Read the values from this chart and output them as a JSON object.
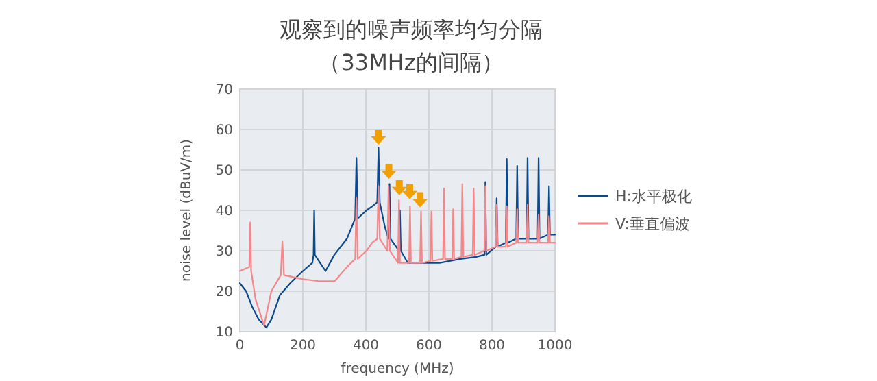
{
  "chart_data": {
    "type": "line",
    "title": "观察到的噪声频率均匀分隔",
    "subtitle": "（33MHz的间隔）",
    "xlabel": "frequency (MHz)",
    "ylabel": "noise level (dBuV/m)",
    "xlim": [
      0,
      1000
    ],
    "ylim": [
      10,
      70
    ],
    "xticks": [
      0,
      200,
      400,
      600,
      800,
      1000
    ],
    "yticks": [
      10,
      20,
      30,
      40,
      50,
      60,
      70
    ],
    "grid": true,
    "legend": "right",
    "line_style": "solid",
    "marker": "none",
    "series": [
      {
        "name": "H:水平极化",
        "color": "#0a4a8c",
        "x": [
          0,
          20,
          40,
          60,
          84,
          100,
          127,
          160,
          200,
          230,
          234,
          236,
          238,
          272,
          300,
          340,
          366,
          370,
          374,
          402,
          420,
          436,
          440,
          444,
          460,
          472,
          475,
          478,
          505,
          508,
          511,
          533,
          545,
          600,
          634,
          700,
          750,
          776,
          779,
          782,
          812,
          815,
          818,
          844,
          847,
          850,
          877,
          880,
          883,
          910,
          913,
          916,
          945,
          948,
          951,
          978,
          981,
          984,
          1000
        ],
        "values": [
          22,
          20,
          16,
          13,
          11,
          13,
          19,
          22,
          25,
          27,
          29,
          40,
          29,
          25,
          29,
          33,
          38,
          53,
          38,
          40,
          41,
          42,
          55.5,
          42,
          36,
          33,
          46.5,
          33,
          30,
          40,
          30,
          27,
          27,
          27,
          27,
          28,
          28.5,
          29,
          47,
          29,
          31,
          43,
          31,
          32,
          52.7,
          32,
          33,
          51,
          33,
          33,
          53,
          33,
          33,
          53,
          33,
          34,
          46,
          34,
          34
        ]
      },
      {
        "name": "V:垂直偏波",
        "color": "#f4878a",
        "x": [
          0,
          30,
          33,
          36,
          50,
          77,
          100,
          130,
          135,
          140,
          200,
          250,
          301,
          340,
          366,
          370,
          374,
          402,
          420,
          436,
          440,
          444,
          468,
          472,
          476,
          502,
          505,
          508,
          537,
          540,
          543,
          572,
          575,
          578,
          605,
          608,
          611,
          645,
          648,
          651,
          674,
          677,
          680,
          703,
          706,
          709,
          739,
          742,
          745,
          776,
          779,
          782,
          812,
          815,
          818,
          844,
          847,
          850,
          877,
          880,
          883,
          910,
          913,
          916,
          945,
          948,
          951,
          978,
          981,
          984,
          1000
        ],
        "values": [
          25,
          26,
          37,
          25,
          18,
          11.5,
          20,
          24,
          32.4,
          24,
          23,
          22.5,
          22.5,
          26,
          28,
          43,
          28,
          30,
          32,
          33,
          46,
          33,
          30,
          46,
          30,
          27,
          42.5,
          27,
          27,
          41,
          27,
          27,
          39.7,
          27,
          27.5,
          39.7,
          27.5,
          28,
          45.4,
          28,
          28,
          40.3,
          28,
          28.5,
          46.5,
          28.5,
          29,
          45.4,
          29,
          30,
          46,
          30,
          31,
          41.4,
          31,
          31,
          41,
          31,
          32,
          40.3,
          32,
          32,
          41.4,
          32,
          32,
          39,
          32,
          32,
          38.6,
          32,
          32
        ]
      }
    ]
  }
}
